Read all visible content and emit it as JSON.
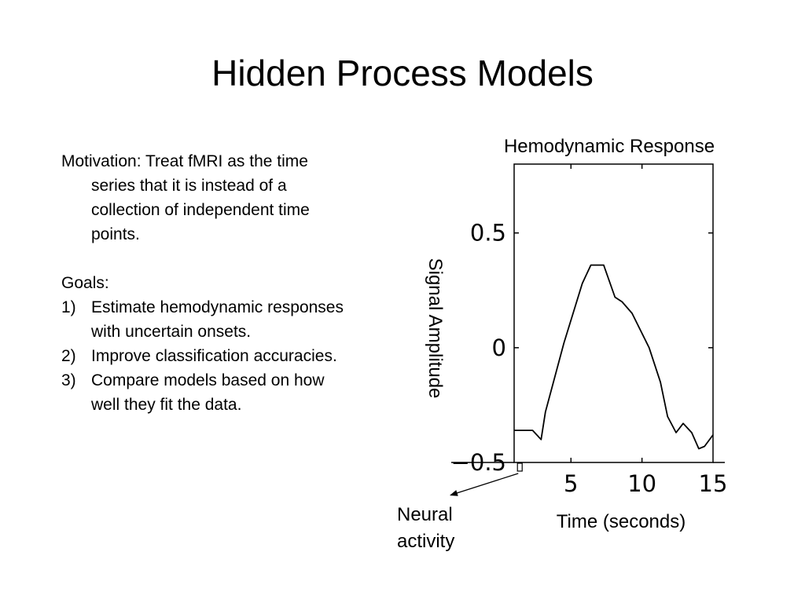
{
  "slide": {
    "title": "Hidden Process Models",
    "motivation": "Motivation: Treat fMRI as the time series that it is instead of a collection of independent time points.",
    "goals_heading": "Goals:",
    "goals": [
      {
        "num": "1)",
        "text": "Estimate hemodynamic responses with uncertain onsets."
      },
      {
        "num": "2)",
        "text": "Improve classification accuracies."
      },
      {
        "num": "3)",
        "text": "Compare models based on how well they fit the data."
      }
    ]
  },
  "chart_data": {
    "type": "line",
    "title": "Hemodynamic Response",
    "xlabel": "Time (seconds)",
    "ylabel": "Signal Amplitude",
    "xlim": [
      1,
      15
    ],
    "ylim": [
      -0.5,
      0.8
    ],
    "xticks": [
      5,
      10,
      15
    ],
    "xtick_labels": [
      "5",
      "10",
      "15"
    ],
    "yticks": [
      -0.5,
      0,
      0.5
    ],
    "ytick_labels": [
      "−0.5",
      "0",
      "0.5"
    ],
    "grid": false,
    "series": [
      {
        "x": [
          1,
          2.3,
          2.9,
          3.2,
          4.5,
          5.8,
          6.4,
          7.3,
          8.1,
          8.6,
          9.3,
          10.5,
          11.3,
          11.8,
          12.4,
          12.9,
          13.5,
          14.0,
          14.4,
          15.0
        ],
        "y": [
          -0.36,
          -0.36,
          -0.4,
          -0.28,
          0.02,
          0.28,
          0.36,
          0.36,
          0.22,
          0.2,
          0.15,
          0.0,
          -0.15,
          -0.3,
          -0.37,
          -0.33,
          -0.37,
          -0.44,
          -0.43,
          -0.38
        ]
      }
    ],
    "annotation": {
      "line1": "Neural",
      "line2": "activity",
      "at_x": 1.4
    }
  }
}
